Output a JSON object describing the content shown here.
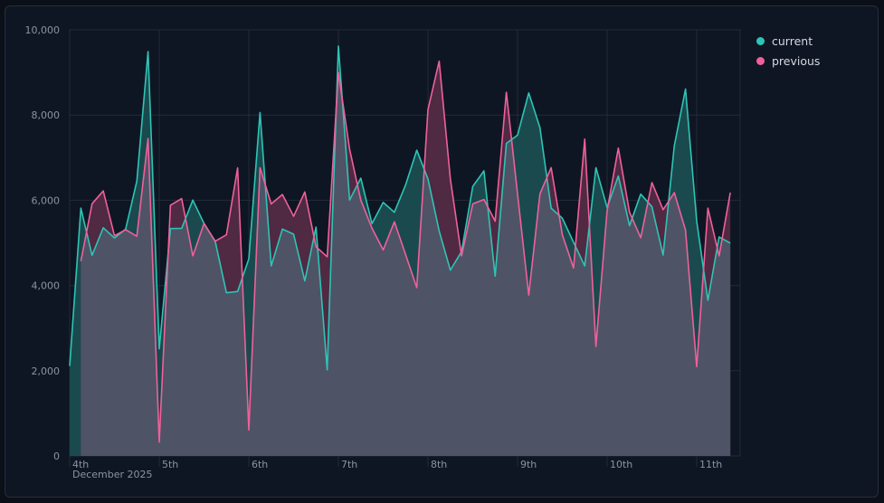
{
  "chart_data": {
    "type": "area",
    "title": "",
    "xlabel": "",
    "ylabel": "",
    "x_ticks": [
      "4th",
      "5th",
      "6th",
      "7th",
      "8th",
      "9th",
      "10th",
      "11th"
    ],
    "x_subtitle": "December 2025",
    "x_interval": "3 hours, starting 4 Dec 2025 00:00",
    "y_ticks": [
      "0",
      "2,000",
      "4,000",
      "6,000",
      "8,000",
      "10,000"
    ],
    "ylim": [
      0,
      10000
    ],
    "grid": true,
    "legend_position": "top-right",
    "series": [
      {
        "name": "current",
        "color": "#2ec4b6",
        "values": [
          2110,
          5815,
          4710,
          5355,
          5115,
          5325,
          6450,
          9490,
          2515,
          5335,
          5340,
          6005,
          5455,
          5035,
          3830,
          3860,
          4625,
          8060,
          4460,
          5325,
          5205,
          4110,
          5370,
          2020,
          9620,
          6005,
          6520,
          5455,
          5950,
          5720,
          6360,
          7175,
          6500,
          5280,
          4360,
          4800,
          6325,
          6690,
          4220,
          7335,
          7530,
          8520,
          7705,
          5815,
          5580,
          5015,
          4460,
          6765,
          5830,
          6570,
          5405,
          6145,
          5850,
          4715,
          7280,
          8610,
          5510,
          3655,
          5140,
          4995
        ]
      },
      {
        "name": "previous",
        "color": "#f0609b",
        "values": [
          null,
          4570,
          5920,
          6220,
          5170,
          5310,
          5155,
          7450,
          325,
          5885,
          6040,
          4695,
          5455,
          5040,
          5190,
          6760,
          610,
          6765,
          5915,
          6135,
          5625,
          6195,
          4910,
          4675,
          8995,
          7200,
          6005,
          5345,
          4835,
          5495,
          4730,
          3950,
          8130,
          9265,
          6500,
          4695,
          5915,
          6020,
          5510,
          8535,
          6150,
          3775,
          6150,
          6765,
          5190,
          4410,
          7435,
          2570,
          5760,
          7225,
          5720,
          5120,
          6415,
          5780,
          6180,
          5300,
          2095,
          5815,
          4695,
          6180
        ]
      }
    ]
  }
}
